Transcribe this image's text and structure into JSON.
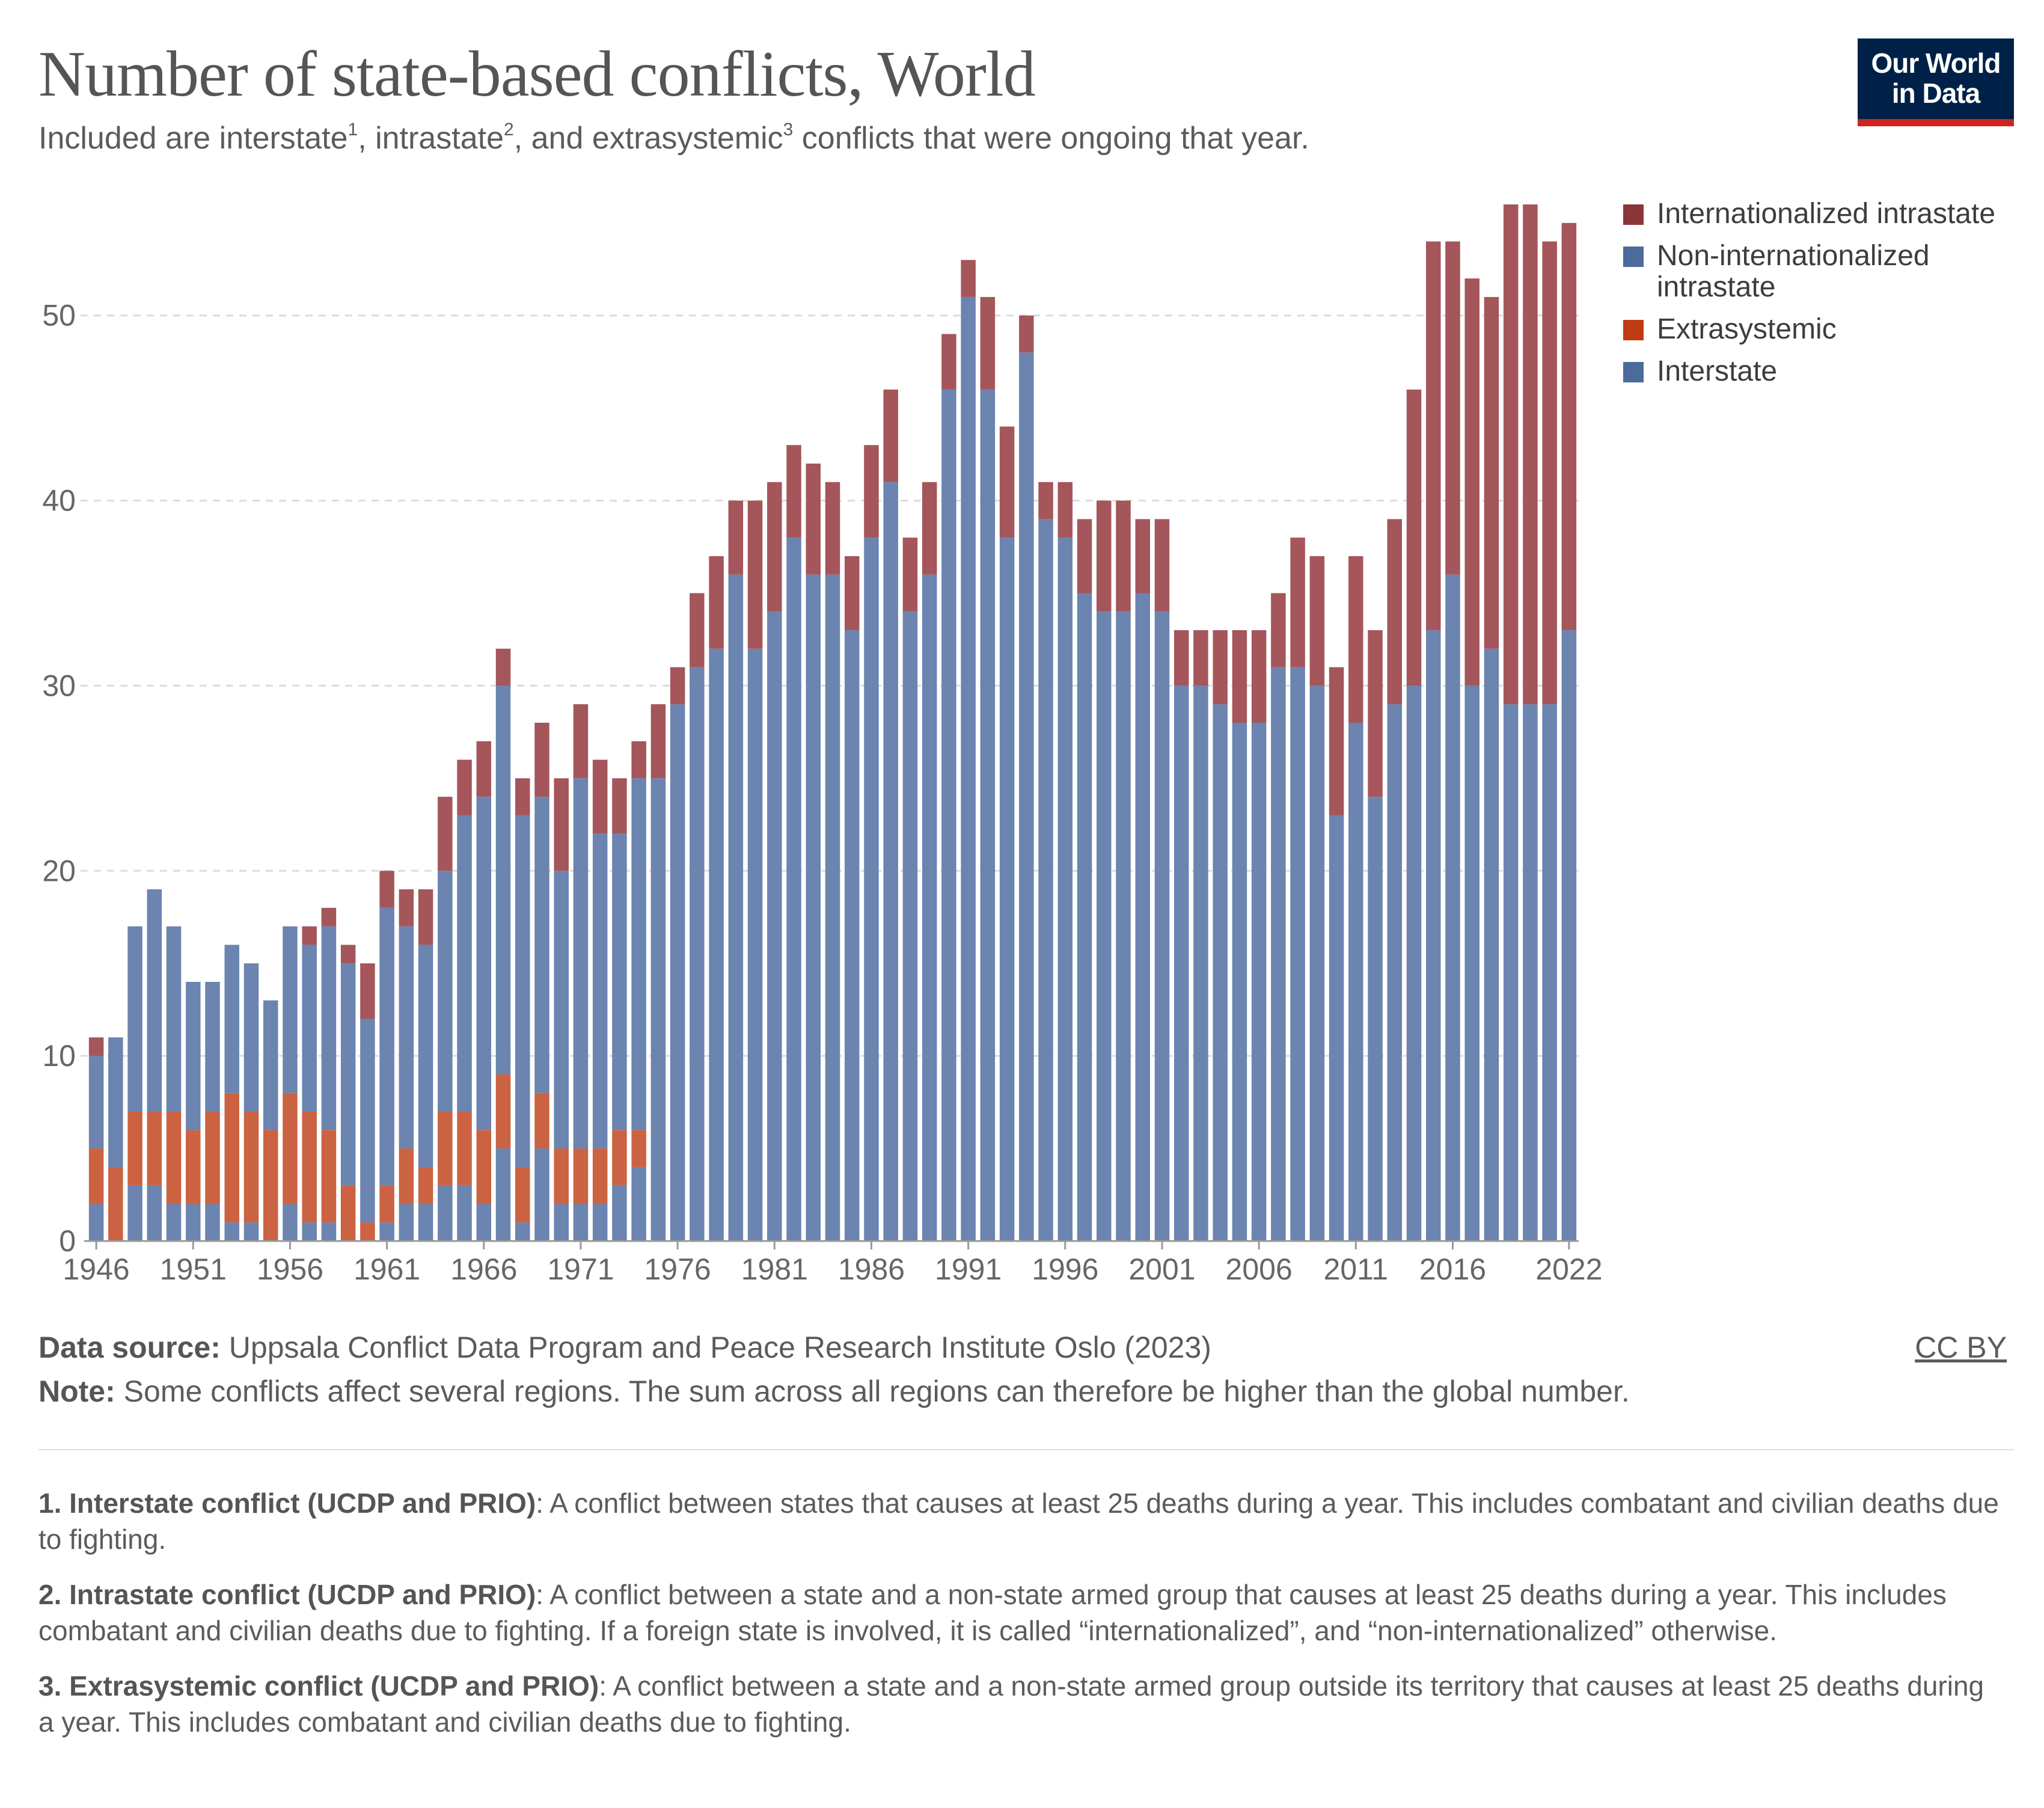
{
  "header": {
    "title": "Number of state-based conflicts, World",
    "subtitle_parts": [
      "Included are interstate",
      "1",
      ", intrastate",
      "2",
      ", and extrasystemic",
      "3",
      " conflicts that were ongoing that year."
    ]
  },
  "logo": {
    "line1": "Our World",
    "line2": "in Data",
    "bg_color": "#002147",
    "accent_color": "#ce261e"
  },
  "legend": [
    {
      "label": "Internationalized intrastate",
      "color": "#8c3538"
    },
    {
      "label": "Non-internationalized intrastate",
      "color": "#4c6a9c"
    },
    {
      "label": "Extrasystemic",
      "color": "#bf3c12"
    },
    {
      "label": "Interstate",
      "color": "#4c6a9c"
    }
  ],
  "footer": {
    "source_label": "Data source:",
    "source_text": "Uppsala Conflict Data Program and Peace Research Institute Oslo (2023)",
    "note_label": "Note:",
    "note_text": "Some conflicts affect several regions. The sum across all regions can therefore be higher than the global number.",
    "license": "CC BY"
  },
  "footnotes": [
    {
      "label": "1. Interstate conflict (UCDP and PRIO)",
      "text": ": A conflict between states that causes at least 25 deaths during a year. This includes combatant and civilian deaths due to fighting."
    },
    {
      "label": "2. Intrastate conflict (UCDP and PRIO)",
      "text": ": A conflict between a state and a non-state armed group that causes at least 25 deaths during a year. This includes combatant and civilian deaths due to fighting. If a foreign state is involved, it is called “internationalized”, and “non-internationalized” otherwise."
    },
    {
      "label": "3. Extrasystemic conflict (UCDP and PRIO)",
      "text": ": A conflict between a state and a non-state armed group outside its territory that causes at least 25 deaths during a year. This includes combatant and civilian deaths due to fighting."
    }
  ],
  "chart_data": {
    "type": "bar",
    "stacked": true,
    "title": "Number of state-based conflicts, World",
    "xlabel": "",
    "ylabel": "",
    "ylim": [
      0,
      56
    ],
    "yticks": [
      0,
      10,
      20,
      30,
      40,
      50
    ],
    "xticks": [
      1946,
      1951,
      1956,
      1961,
      1966,
      1971,
      1976,
      1981,
      1986,
      1991,
      1996,
      2001,
      2006,
      2011,
      2016,
      2022
    ],
    "grid": true,
    "legend_position": "top-right",
    "categories": [
      1946,
      1947,
      1948,
      1949,
      1950,
      1951,
      1952,
      1953,
      1954,
      1955,
      1956,
      1957,
      1958,
      1959,
      1960,
      1961,
      1962,
      1963,
      1964,
      1965,
      1966,
      1967,
      1968,
      1969,
      1970,
      1971,
      1972,
      1973,
      1974,
      1975,
      1976,
      1977,
      1978,
      1979,
      1980,
      1981,
      1982,
      1983,
      1984,
      1985,
      1986,
      1987,
      1988,
      1989,
      1990,
      1991,
      1992,
      1993,
      1994,
      1995,
      1996,
      1997,
      1998,
      1999,
      2000,
      2001,
      2002,
      2003,
      2004,
      2005,
      2006,
      2007,
      2008,
      2009,
      2010,
      2011,
      2012,
      2013,
      2014,
      2015,
      2016,
      2017,
      2018,
      2019,
      2020,
      2021,
      2022
    ],
    "series": [
      {
        "name": "Interstate",
        "color": "#6b84b0",
        "values": [
          2,
          0,
          3,
          3,
          2,
          2,
          2,
          1,
          1,
          0,
          2,
          1,
          1,
          0,
          0,
          1,
          2,
          2,
          3,
          3,
          2,
          5,
          1,
          5,
          2,
          2,
          2,
          3,
          4,
          0,
          0,
          0,
          0,
          0,
          0,
          0,
          0,
          0,
          0,
          0,
          0,
          0,
          0,
          0,
          0,
          0,
          0,
          0,
          0,
          0,
          0,
          0,
          0,
          0,
          0,
          0,
          0,
          0,
          0,
          0,
          0,
          0,
          0,
          0,
          0,
          0,
          0,
          0,
          0,
          0,
          0,
          0,
          0,
          0,
          0,
          0,
          0
        ]
      },
      {
        "name": "Extrasystemic",
        "color": "#cb6242",
        "values": [
          3,
          4,
          4,
          4,
          5,
          4,
          5,
          7,
          6,
          6,
          6,
          6,
          5,
          3,
          1,
          2,
          3,
          2,
          4,
          4,
          4,
          4,
          3,
          3,
          3,
          3,
          3,
          3,
          2,
          0,
          0,
          0,
          0,
          0,
          0,
          0,
          0,
          0,
          0,
          0,
          0,
          0,
          0,
          0,
          0,
          0,
          0,
          0,
          0,
          0,
          0,
          0,
          0,
          0,
          0,
          0,
          0,
          0,
          0,
          0,
          0,
          0,
          0,
          0,
          0,
          0,
          0,
          0,
          0,
          0,
          0,
          0,
          0,
          0,
          0,
          0,
          0
        ]
      },
      {
        "name": "Non-internationalized intrastate",
        "color": "#6b84b0",
        "values": [
          5,
          7,
          10,
          12,
          10,
          8,
          7,
          8,
          8,
          7,
          9,
          9,
          11,
          12,
          11,
          15,
          12,
          12,
          13,
          16,
          18,
          21,
          19,
          16,
          15,
          20,
          17,
          16,
          19,
          25,
          29,
          31,
          32,
          36,
          32,
          34,
          38,
          36,
          36,
          33,
          38,
          41,
          34,
          36,
          46,
          51,
          46,
          38,
          48,
          39,
          38,
          35,
          34,
          34,
          35,
          34,
          30,
          30,
          29,
          28,
          28,
          31,
          31,
          30,
          23,
          28,
          24,
          29,
          30,
          33,
          36,
          30,
          32,
          29,
          29,
          29,
          33
        ]
      },
      {
        "name": "Internationalized intrastate",
        "color": "#a4565b",
        "values": [
          1,
          0,
          0,
          0,
          0,
          0,
          0,
          0,
          0,
          0,
          0,
          1,
          1,
          1,
          3,
          2,
          2,
          3,
          4,
          3,
          3,
          2,
          2,
          4,
          5,
          4,
          4,
          3,
          2,
          4,
          2,
          4,
          5,
          4,
          8,
          7,
          5,
          6,
          5,
          4,
          5,
          5,
          4,
          5,
          3,
          2,
          5,
          6,
          2,
          2,
          3,
          4,
          6,
          6,
          4,
          5,
          3,
          3,
          4,
          5,
          5,
          4,
          7,
          7,
          8,
          9,
          9,
          10,
          16,
          21,
          18,
          22,
          19,
          27,
          27,
          25,
          22
        ]
      }
    ]
  }
}
